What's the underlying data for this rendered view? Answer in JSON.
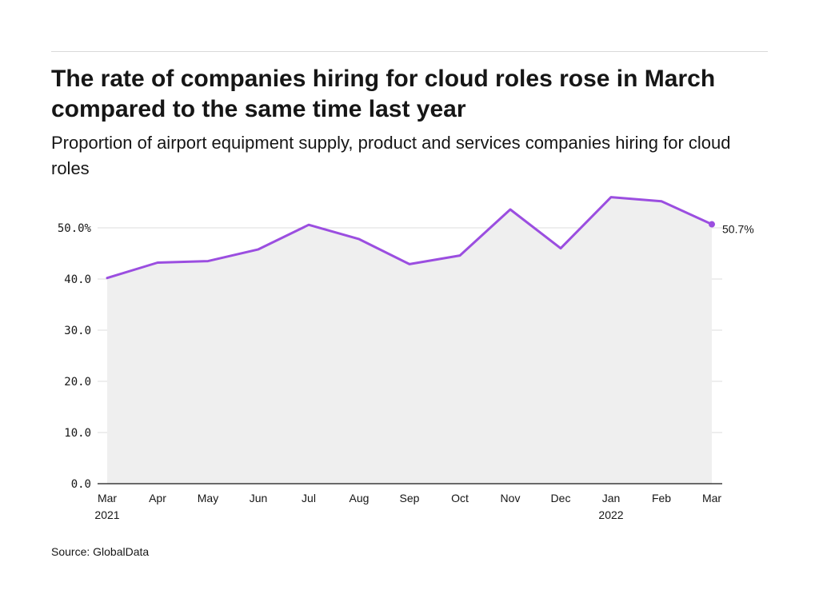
{
  "title": "The rate of companies hiring for cloud roles rose in March compared to the same time last year",
  "subtitle": "Proportion of airport equipment supply, product and services companies hiring for cloud roles",
  "source": "Source: GlobalData",
  "colors": {
    "line": "#9b4ee0",
    "area": "#efefef",
    "grid": "#dcdcdc",
    "axis": "#161616"
  },
  "chart_data": {
    "type": "area",
    "title": "The rate of companies hiring for cloud roles rose in March compared to the same time last year",
    "subtitle": "Proportion of airport equipment supply, product and services companies hiring for cloud roles",
    "xlabel": "",
    "ylabel": "",
    "ylim": [
      0,
      50
    ],
    "grid": true,
    "legend": "none",
    "categories": [
      "Mar",
      "Apr",
      "May",
      "Jun",
      "Jul",
      "Aug",
      "Sep",
      "Oct",
      "Nov",
      "Dec",
      "Jan",
      "Feb",
      "Mar"
    ],
    "category_sublabels": [
      "2021",
      "",
      "",
      "",
      "",
      "",
      "",
      "",
      "",
      "",
      "2022",
      "",
      ""
    ],
    "y_ticks": [
      "0.0",
      "10.0",
      "20.0",
      "30.0",
      "40.0",
      "50.0%"
    ],
    "series": [
      {
        "values": [
          40.2,
          43.2,
          43.5,
          45.8,
          50.6,
          47.8,
          42.9,
          44.6,
          53.6,
          46.0,
          56.0,
          55.2,
          50.7
        ]
      }
    ],
    "end_label": "50.7%"
  }
}
